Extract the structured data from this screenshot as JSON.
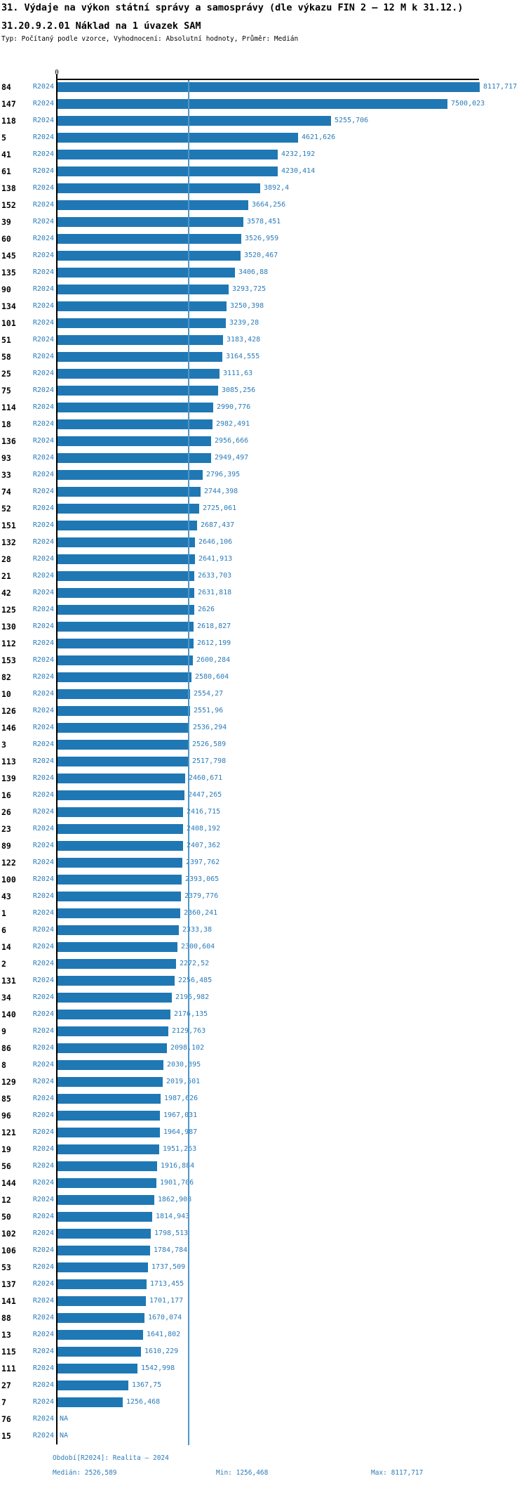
{
  "header": {
    "title": "31. Výdaje na výkon státní správy a samosprávy (dle výkazu FIN 2 – 12 M k 31.12.)",
    "subtitle": "31.20.9.2.01 Náklad na 1 úvazek SAM",
    "type_line": "Typ: Počítaný podle vzorce, Vyhodnocení: Absolutní hodnoty, Průměr: Medián"
  },
  "chart_data": {
    "type": "bar",
    "orientation": "horizontal",
    "title": "31.20.9.2.01 Náklad na 1 úvazek SAM",
    "series_label": "R2024",
    "axis_zero_label": "0",
    "na_label": "NA",
    "xlim": [
      0,
      8117.717
    ],
    "median_value": 2526.589,
    "max_value": 8117.717,
    "min_value": 1256.468,
    "bar_color": "#1f78b4",
    "median_line_color": "#4e96ca",
    "label_color": "#2b7cba",
    "grid": false,
    "categories": [
      84,
      147,
      118,
      5,
      41,
      61,
      138,
      152,
      39,
      60,
      145,
      135,
      90,
      134,
      101,
      51,
      58,
      25,
      75,
      114,
      18,
      136,
      93,
      33,
      74,
      52,
      151,
      132,
      28,
      21,
      42,
      125,
      130,
      112,
      153,
      82,
      10,
      126,
      146,
      3,
      113,
      139,
      16,
      26,
      23,
      89,
      122,
      100,
      43,
      1,
      6,
      14,
      2,
      131,
      34,
      140,
      9,
      86,
      8,
      129,
      85,
      96,
      121,
      19,
      56,
      144,
      12,
      50,
      102,
      106,
      53,
      137,
      141,
      88,
      13,
      115,
      111,
      27,
      7,
      76,
      15
    ],
    "values": [
      8117.717,
      7500.023,
      5255.706,
      4621.626,
      4232.192,
      4230.414,
      3892.4,
      3664.256,
      3578.451,
      3526.959,
      3520.467,
      3406.88,
      3293.725,
      3250.398,
      3239.28,
      3183.428,
      3164.555,
      3111.63,
      3085.256,
      2990.776,
      2982.491,
      2956.666,
      2949.497,
      2796.395,
      2744.398,
      2725.061,
      2687.437,
      2646.106,
      2641.913,
      2633.703,
      2631.818,
      2626,
      2618.827,
      2612.199,
      2600.284,
      2580.604,
      2554.27,
      2551.96,
      2536.294,
      2526.589,
      2517.798,
      2460.671,
      2447.265,
      2416.715,
      2408.192,
      2407.362,
      2397.762,
      2393.065,
      2379.776,
      2360.241,
      2333.38,
      2300.604,
      2272.52,
      2256.485,
      2195.982,
      2176.135,
      2129.763,
      2098.102,
      2030.395,
      2019.501,
      1987.626,
      1967.031,
      1964.987,
      1951.263,
      1916.884,
      1901.706,
      1862.908,
      1814.943,
      1798.513,
      1784.784,
      1737.509,
      1713.455,
      1701.177,
      1670.074,
      1641.802,
      1610.229,
      1542.998,
      1367.75,
      1256.468,
      null,
      null
    ],
    "value_labels": [
      "8117,717",
      "7500,023",
      "5255,706",
      "4621,626",
      "4232,192",
      "4230,414",
      "3892,4",
      "3664,256",
      "3578,451",
      "3526,959",
      "3520,467",
      "3406,88",
      "3293,725",
      "3250,398",
      "3239,28",
      "3183,428",
      "3164,555",
      "3111,63",
      "3085,256",
      "2990,776",
      "2982,491",
      "2956,666",
      "2949,497",
      "2796,395",
      "2744,398",
      "2725,061",
      "2687,437",
      "2646,106",
      "2641,913",
      "2633,703",
      "2631,818",
      "2626",
      "2618,827",
      "2612,199",
      "2600,284",
      "2580,604",
      "2554,27",
      "2551,96",
      "2536,294",
      "2526,589",
      "2517,798",
      "2460,671",
      "2447,265",
      "2416,715",
      "2408,192",
      "2407,362",
      "2397,762",
      "2393,065",
      "2379,776",
      "2360,241",
      "2333,38",
      "2300,604",
      "2272,52",
      "2256,485",
      "2195,982",
      "2176,135",
      "2129,763",
      "2098,102",
      "2030,395",
      "2019,501",
      "1987,626",
      "1967,031",
      "1964,987",
      "1951,263",
      "1916,884",
      "1901,706",
      "1862,908",
      "1814,943",
      "1798,513",
      "1784,784",
      "1737,509",
      "1713,455",
      "1701,177",
      "1670,074",
      "1641,802",
      "1610,229",
      "1542,998",
      "1367,75",
      "1256,468",
      "NA",
      "NA"
    ]
  },
  "footer": {
    "period": "Období[R2024]: Realita – 2024",
    "median": "Medián: 2526,589",
    "min": "Min: 1256,468",
    "max": "Max: 8117,717"
  }
}
